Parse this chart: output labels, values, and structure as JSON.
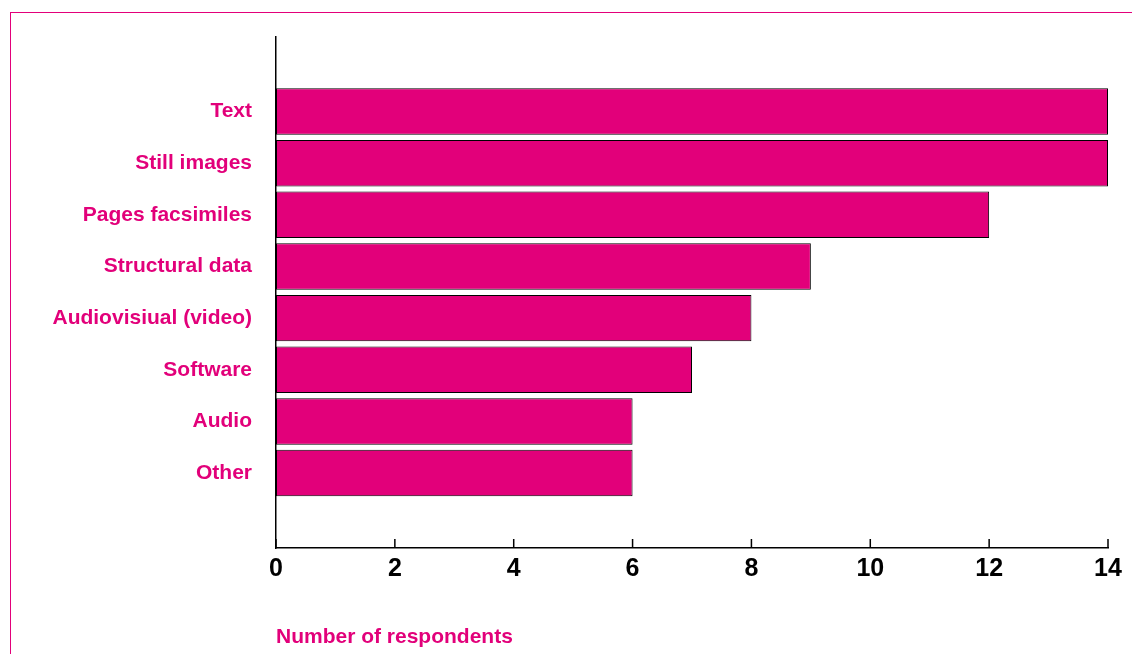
{
  "chart_data": {
    "type": "bar",
    "orientation": "horizontal",
    "xlabel": "Number of respondents",
    "categories": [
      "Text",
      "Still images",
      "Pages facsimiles",
      "Structural data",
      "Audiovisiual (video)",
      "Software",
      "Audio",
      "Other"
    ],
    "values": [
      14,
      14,
      12,
      9,
      8,
      7,
      6,
      6
    ],
    "color": "#e2007a",
    "xlim": [
      0,
      14
    ],
    "xticks": [
      0,
      2,
      4,
      6,
      8,
      10,
      12,
      14
    ],
    "grid": false,
    "legend": false
  }
}
